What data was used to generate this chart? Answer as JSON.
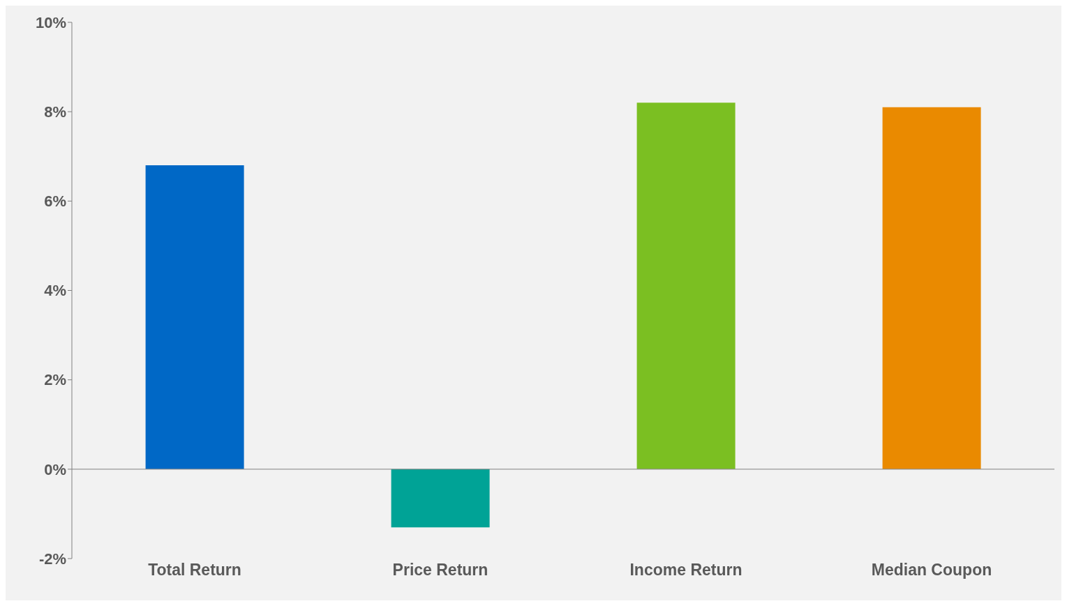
{
  "chart_data": {
    "type": "bar",
    "categories": [
      "Total Return",
      "Price Return",
      "Income Return",
      "Median Coupon"
    ],
    "values": [
      6.8,
      -1.3,
      8.2,
      8.1
    ],
    "colors": [
      "#0068c6",
      "#00a396",
      "#7bbf22",
      "#ea8a00"
    ],
    "ylim": [
      -2,
      10
    ],
    "yticks": [
      {
        "value": -2,
        "label": "-2%"
      },
      {
        "value": 0,
        "label": "0%"
      },
      {
        "value": 2,
        "label": "2%"
      },
      {
        "value": 4,
        "label": "4%"
      },
      {
        "value": 6,
        "label": "6%"
      },
      {
        "value": 8,
        "label": "8%"
      },
      {
        "value": 10,
        "label": "10%"
      }
    ],
    "tick_labels": "xy"
  }
}
